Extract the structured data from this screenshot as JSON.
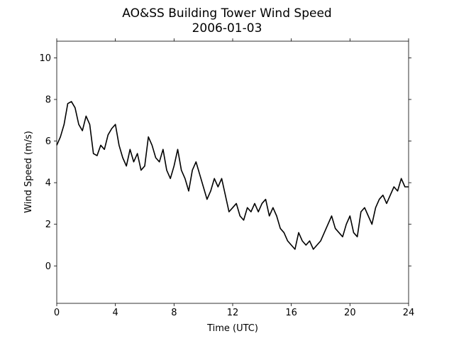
{
  "chart_data": {
    "type": "line",
    "title": "AO&SS Building Tower Wind Speed",
    "subtitle": "2006-01-03",
    "xlabel": "Time (UTC)",
    "ylabel": "Wind Speed (m/s)",
    "x": [
      0,
      0.25,
      0.5,
      0.75,
      1,
      1.25,
      1.5,
      1.75,
      2,
      2.25,
      2.5,
      2.75,
      3,
      3.25,
      3.5,
      3.75,
      4,
      4.25,
      4.5,
      4.75,
      5,
      5.25,
      5.5,
      5.75,
      6,
      6.25,
      6.5,
      6.75,
      7,
      7.25,
      7.5,
      7.75,
      8,
      8.25,
      8.5,
      8.75,
      9,
      9.25,
      9.5,
      9.75,
      10,
      10.25,
      10.5,
      10.75,
      11,
      11.25,
      11.5,
      11.75,
      12,
      12.25,
      12.5,
      12.75,
      13,
      13.25,
      13.5,
      13.75,
      14,
      14.25,
      14.5,
      14.75,
      15,
      15.25,
      15.5,
      15.75,
      16,
      16.25,
      16.5,
      16.75,
      17,
      17.25,
      17.5,
      17.75,
      18,
      18.25,
      18.5,
      18.75,
      19,
      19.25,
      19.5,
      19.75,
      20,
      20.25,
      20.5,
      20.75,
      21,
      21.25,
      21.5,
      21.75,
      22,
      22.25,
      22.5,
      22.75,
      23,
      23.25,
      23.5,
      23.75,
      24
    ],
    "series": [
      {
        "name": "Wind Speed",
        "color": "#000000",
        "values": [
          5.8,
          6.2,
          6.8,
          7.8,
          7.9,
          7.6,
          6.8,
          6.5,
          7.2,
          6.8,
          5.4,
          5.3,
          5.8,
          5.6,
          6.3,
          6.6,
          6.8,
          5.8,
          5.2,
          4.8,
          5.6,
          5.0,
          5.4,
          4.6,
          4.8,
          6.2,
          5.8,
          5.2,
          5.0,
          5.6,
          4.6,
          4.2,
          4.8,
          5.6,
          4.6,
          4.2,
          3.6,
          4.6,
          5.0,
          4.4,
          3.8,
          3.2,
          3.6,
          4.2,
          3.8,
          4.2,
          3.4,
          2.6,
          2.8,
          3.0,
          2.4,
          2.2,
          2.8,
          2.6,
          3.0,
          2.6,
          3.0,
          3.2,
          2.4,
          2.8,
          2.4,
          1.8,
          1.6,
          1.2,
          1.0,
          0.8,
          1.6,
          1.2,
          1.0,
          1.2,
          0.8,
          1.0,
          1.2,
          1.6,
          2.0,
          2.4,
          1.8,
          1.6,
          1.4,
          2.0,
          2.4,
          1.6,
          1.4,
          2.6,
          2.8,
          2.4,
          2.0,
          2.8,
          3.2,
          3.4,
          3.0,
          3.4,
          3.8,
          3.6,
          4.2,
          3.8,
          3.8
        ]
      }
    ],
    "xlim": [
      0,
      24
    ],
    "xticks": [
      0,
      4,
      8,
      12,
      16,
      20,
      24
    ],
    "ylim": [
      -1.8,
      10.8
    ],
    "yticks": [
      0,
      2,
      4,
      6,
      8,
      10
    ],
    "grid": false
  }
}
